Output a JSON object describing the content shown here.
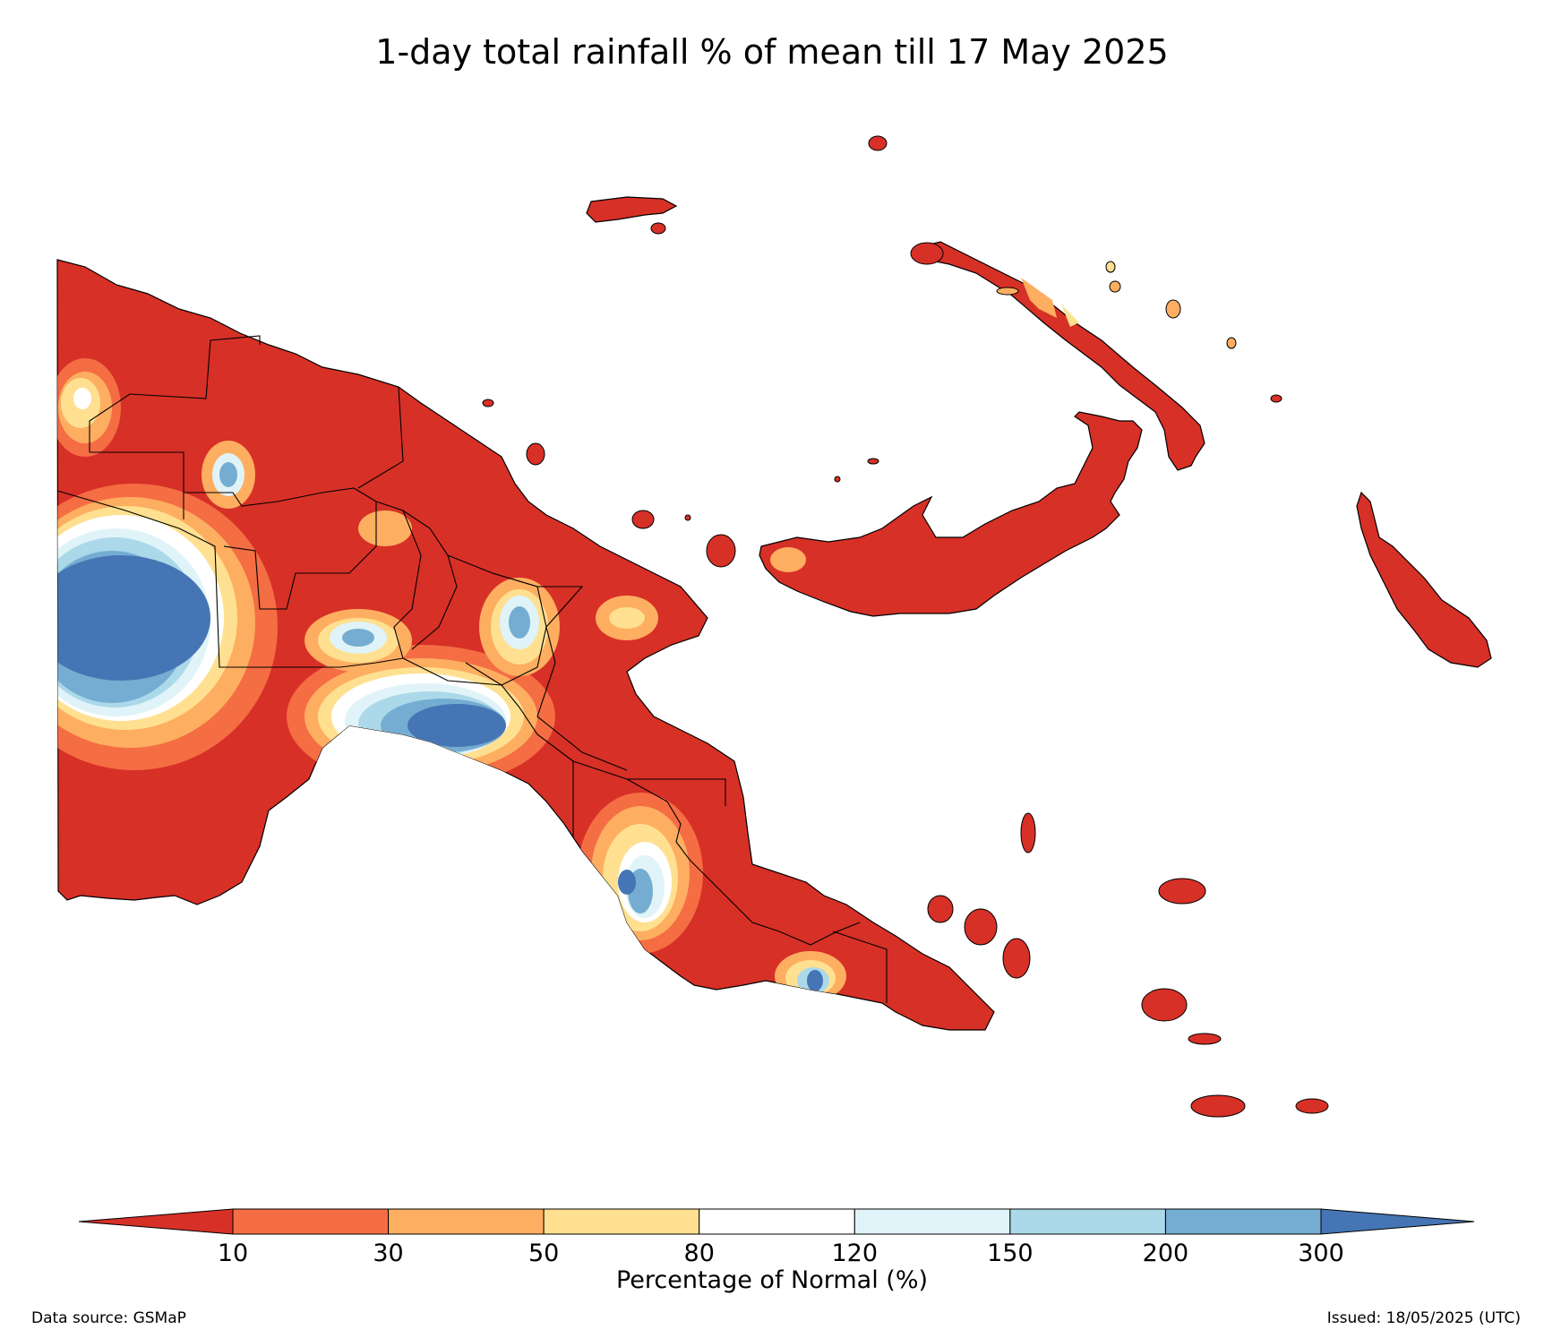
{
  "title": "1-day total rainfall % of mean till 17 May 2025",
  "colorbar": {
    "label": "Percentage of Normal (%)",
    "ticks": [
      "10",
      "30",
      "50",
      "80",
      "120",
      "150",
      "200",
      "300"
    ],
    "colors": [
      "#d73027",
      "#f46d43",
      "#fdae61",
      "#fee090",
      "#ffffff",
      "#e0f3f8",
      "#abd9e9",
      "#74add1",
      "#4575b4"
    ],
    "extend": "both"
  },
  "footer": {
    "source": "Data source: GSMaP",
    "issued": "Issued: 18/05/2025 (UTC)"
  }
}
